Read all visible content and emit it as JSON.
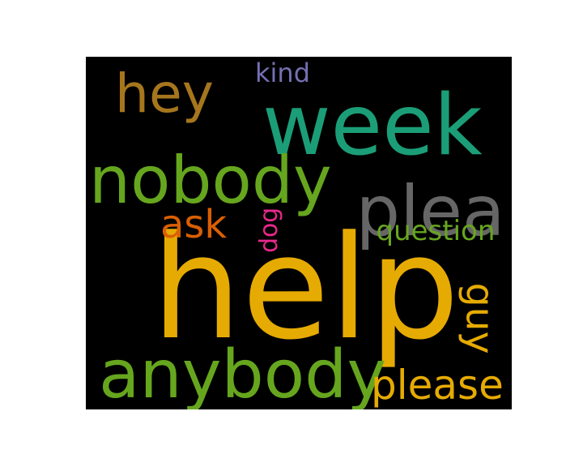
{
  "wordcloud": {
    "background_color": "#000000",
    "words": [
      {
        "key": "help",
        "text": "help",
        "color": "#e6ab02",
        "rotated": false
      },
      {
        "key": "week",
        "text": "week",
        "color": "#1b9e77",
        "rotated": false
      },
      {
        "key": "nobody",
        "text": "nobody",
        "color": "#66a61e",
        "rotated": false
      },
      {
        "key": "anybody",
        "text": "anybody",
        "color": "#66a61e",
        "rotated": false
      },
      {
        "key": "plea",
        "text": "plea",
        "color": "#666666",
        "rotated": false
      },
      {
        "key": "hey",
        "text": "hey",
        "color": "#a6761d",
        "rotated": false
      },
      {
        "key": "please",
        "text": "please",
        "color": "#e6ab02",
        "rotated": false
      },
      {
        "key": "ask",
        "text": "ask",
        "color": "#d95f02",
        "rotated": false
      },
      {
        "key": "question",
        "text": "question",
        "color": "#66a61e",
        "rotated": false
      },
      {
        "key": "guy",
        "text": "guy",
        "color": "#e6ab02",
        "rotated": true
      },
      {
        "key": "dog",
        "text": "dog",
        "color": "#e7298a",
        "rotated": true
      },
      {
        "key": "kind",
        "text": "kind",
        "color": "#7570b3",
        "rotated": false
      }
    ]
  }
}
